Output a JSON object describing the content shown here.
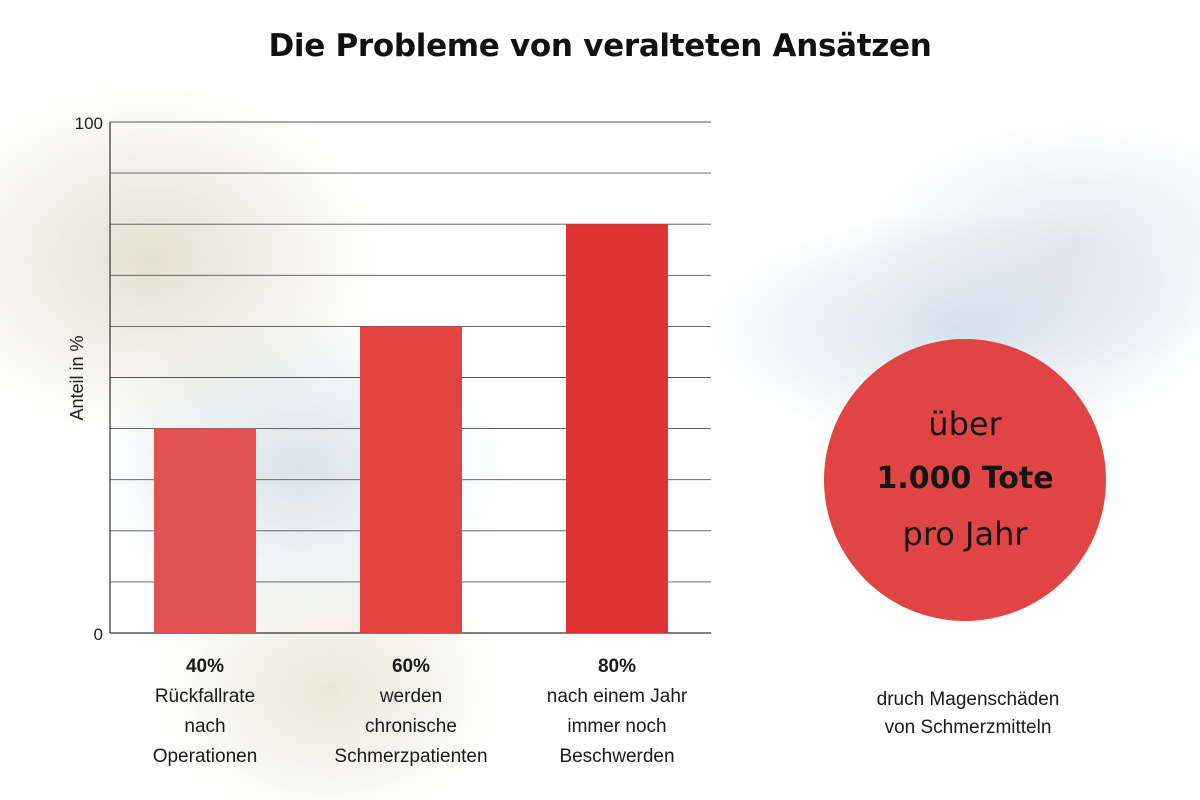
{
  "title": "Die Probleme von veralteten Ansätzen",
  "chart_data": {
    "type": "bar",
    "title": "Die Probleme von veralteten Ansätzen",
    "ylabel": "Anteil in %",
    "xlabel": "",
    "ylim": [
      0,
      100
    ],
    "yticks": [
      "0",
      "100"
    ],
    "grid": true,
    "categories": [
      "Rückfallrate nach Operationen",
      "werden chronische Schmerzpatienten",
      "nach einem Jahr immer noch Beschwerden"
    ],
    "values": [
      40,
      60,
      80
    ],
    "value_labels": [
      "40%",
      "60%",
      "80%"
    ],
    "category_lines": [
      [
        "Rückfallrate",
        "nach",
        "Operationen"
      ],
      [
        "werden",
        "chronische",
        "Schmerzpatienten"
      ],
      [
        "nach einem Jahr",
        "immer noch",
        "Beschwerden"
      ]
    ],
    "bar_colors": [
      "#e25252",
      "#e24444",
      "#e03434"
    ]
  },
  "callout": {
    "line1": "über",
    "line2": "1.000 Tote",
    "line3": "pro Jahr",
    "note": "druch Magenschäden\nvon Schmerzmitteln",
    "color": "#e04444"
  }
}
